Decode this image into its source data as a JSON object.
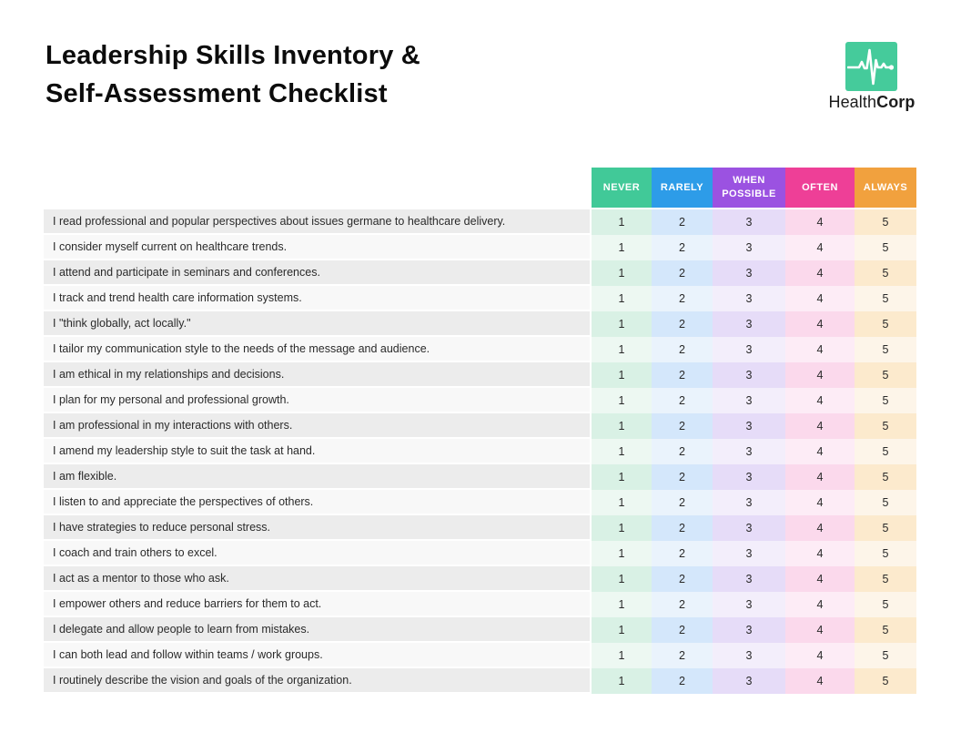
{
  "header": {
    "title_line1": "Leadership Skills Inventory &",
    "title_line2": "Self-Assessment Checklist"
  },
  "brand": {
    "logo_icon": "heartbeat-icon",
    "logo_color": "#45cb9b",
    "name_regular": "Health",
    "name_bold": "Corp"
  },
  "table": {
    "statement_row_color_odd": "#ececec",
    "statement_row_color_even": "#f8f8f8",
    "columns": [
      {
        "label": "NEVER",
        "value": "1",
        "header_color": "#41c998",
        "tint": "#d9f1e5",
        "tint_light": "#edf8f2"
      },
      {
        "label": "RARELY",
        "value": "2",
        "header_color": "#2d9ce8",
        "tint": "#d4e7fb",
        "tint_light": "#eaf3fc"
      },
      {
        "label": "WHEN POSSIBLE",
        "value": "3",
        "header_color": "#9b52e1",
        "tint": "#e6dcf8",
        "tint_light": "#f3eefb"
      },
      {
        "label": "OFTEN",
        "value": "4",
        "header_color": "#ee3f97",
        "tint": "#fbd9ec",
        "tint_light": "#fdecf6"
      },
      {
        "label": "ALWAYS",
        "value": "5",
        "header_color": "#f1a13e",
        "tint": "#fceacd",
        "tint_light": "#fdf5e9"
      }
    ],
    "rows": [
      "I read professional and popular perspectives about issues germane to healthcare delivery.",
      "I consider myself current on healthcare trends.",
      "I attend and participate in seminars and conferences.",
      "I track and trend health care information systems.",
      "I \"think globally, act locally.\"",
      "I tailor my communication style to the needs of the message and audience.",
      "I am ethical in my relationships and decisions.",
      "I plan for my personal and professional growth.",
      "I am professional in my interactions with others.",
      "I amend my leadership style to suit the task at hand.",
      "I am flexible.",
      "I listen to and appreciate the perspectives of others.",
      "I have strategies to reduce personal stress.",
      "I coach and train others to excel.",
      "I act as a mentor to those who ask.",
      "I empower others and reduce barriers for them to act.",
      "I delegate and allow people to learn from mistakes.",
      "I can both lead and follow within teams / work groups.",
      "I routinely describe the vision and goals of the organization."
    ]
  }
}
